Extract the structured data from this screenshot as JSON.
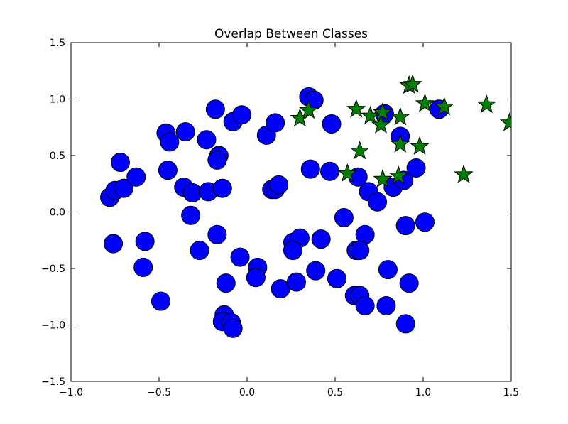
{
  "chart_data": {
    "type": "scatter",
    "title": "Overlap Between Classes",
    "xlabel": "",
    "ylabel": "",
    "xlim": [
      -1.0,
      1.5
    ],
    "ylim": [
      -1.5,
      1.5
    ],
    "xticks": [
      -1.0,
      -0.5,
      0.0,
      0.5,
      1.0,
      1.5
    ],
    "yticks": [
      -1.5,
      -1.0,
      -0.5,
      0.0,
      0.5,
      1.0,
      1.5
    ],
    "xtick_labels": [
      "−1.0",
      "−0.5",
      "0.0",
      "0.5",
      "1.0",
      "1.5"
    ],
    "ytick_labels": [
      "−1.5",
      "−1.0",
      "−0.5",
      "0.0",
      "0.5",
      "1.0",
      "1.5"
    ],
    "grid": false,
    "series": [
      {
        "marker": "circle",
        "color": "#0000ff",
        "points": [
          [
            -0.78,
            0.13
          ],
          [
            -0.75,
            0.19
          ],
          [
            -0.72,
            0.44
          ],
          [
            -0.7,
            0.21
          ],
          [
            -0.63,
            0.31
          ],
          [
            -0.76,
            -0.28
          ],
          [
            -0.58,
            -0.26
          ],
          [
            -0.59,
            -0.49
          ],
          [
            -0.49,
            -0.79
          ],
          [
            -0.46,
            0.7
          ],
          [
            -0.44,
            0.62
          ],
          [
            -0.45,
            0.37
          ],
          [
            -0.35,
            0.71
          ],
          [
            -0.36,
            0.22
          ],
          [
            -0.31,
            0.17
          ],
          [
            -0.32,
            -0.03
          ],
          [
            -0.27,
            -0.34
          ],
          [
            -0.23,
            0.64
          ],
          [
            -0.22,
            0.18
          ],
          [
            -0.18,
            0.91
          ],
          [
            -0.16,
            0.5
          ],
          [
            -0.17,
            0.46
          ],
          [
            -0.14,
            0.21
          ],
          [
            -0.17,
            -0.2
          ],
          [
            -0.08,
            0.8
          ],
          [
            -0.03,
            0.86
          ],
          [
            -0.04,
            -0.4
          ],
          [
            -0.12,
            -0.63
          ],
          [
            -0.13,
            -0.91
          ],
          [
            -0.14,
            -0.97
          ],
          [
            -0.09,
            -0.98
          ],
          [
            -0.08,
            -1.03
          ],
          [
            0.06,
            -0.49
          ],
          [
            0.05,
            -0.58
          ],
          [
            0.11,
            0.68
          ],
          [
            0.16,
            0.79
          ],
          [
            0.14,
            0.2
          ],
          [
            0.16,
            0.2
          ],
          [
            0.18,
            0.24
          ],
          [
            0.19,
            -0.68
          ],
          [
            0.26,
            -0.27
          ],
          [
            0.3,
            -0.23
          ],
          [
            0.26,
            -0.34
          ],
          [
            0.28,
            -0.62
          ],
          [
            0.35,
            1.02
          ],
          [
            0.38,
            0.99
          ],
          [
            0.36,
            0.38
          ],
          [
            0.39,
            -0.52
          ],
          [
            0.42,
            -0.24
          ],
          [
            0.48,
            0.78
          ],
          [
            0.47,
            0.36
          ],
          [
            0.51,
            -0.59
          ],
          [
            0.55,
            -0.05
          ],
          [
            0.63,
            0.31
          ],
          [
            0.67,
            -0.2
          ],
          [
            0.62,
            -0.34
          ],
          [
            0.64,
            -0.34
          ],
          [
            0.61,
            -0.74
          ],
          [
            0.64,
            -0.74
          ],
          [
            0.67,
            -0.83
          ],
          [
            0.69,
            0.18
          ],
          [
            0.74,
            0.09
          ],
          [
            0.78,
            0.87
          ],
          [
            0.8,
            -0.51
          ],
          [
            0.79,
            -0.83
          ],
          [
            0.83,
            0.22
          ],
          [
            0.87,
            0.67
          ],
          [
            0.89,
            0.28
          ],
          [
            0.96,
            0.39
          ],
          [
            0.9,
            -0.12
          ],
          [
            0.92,
            -0.63
          ],
          [
            0.9,
            -0.99
          ],
          [
            1.01,
            -0.09
          ],
          [
            1.09,
            0.91
          ]
        ]
      },
      {
        "marker": "star",
        "color": "#008000",
        "points": [
          [
            0.3,
            0.83
          ],
          [
            0.35,
            0.9
          ],
          [
            0.62,
            0.91
          ],
          [
            0.64,
            0.54
          ],
          [
            0.57,
            0.34
          ],
          [
            0.7,
            0.85
          ],
          [
            0.77,
            0.88
          ],
          [
            0.76,
            0.77
          ],
          [
            0.77,
            0.29
          ],
          [
            0.87,
            0.84
          ],
          [
            0.87,
            0.6
          ],
          [
            0.86,
            0.32
          ],
          [
            0.92,
            1.12
          ],
          [
            0.94,
            1.13
          ],
          [
            0.98,
            0.58
          ],
          [
            1.01,
            0.96
          ],
          [
            1.12,
            0.93
          ],
          [
            1.23,
            0.33
          ],
          [
            1.36,
            0.95
          ],
          [
            1.49,
            0.79
          ]
        ]
      }
    ]
  }
}
